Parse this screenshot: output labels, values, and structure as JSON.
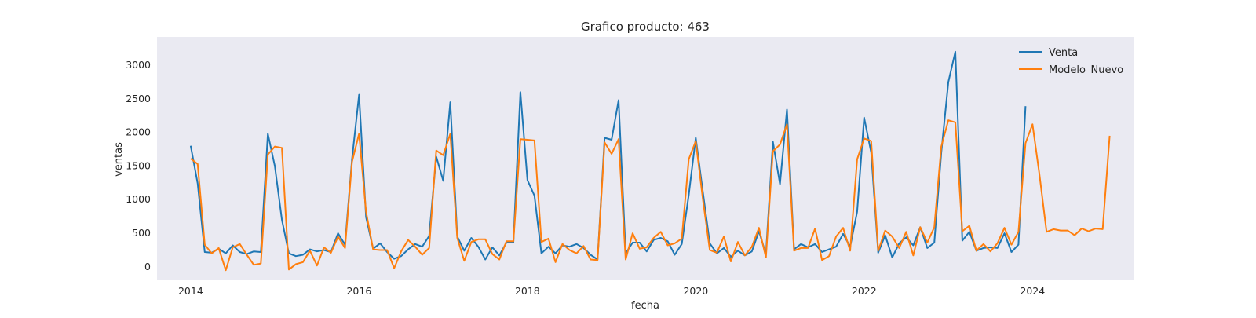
{
  "chart_data": {
    "type": "line",
    "title": "Grafico producto: 463",
    "xlabel": "fecha",
    "ylabel": "ventas",
    "xlim": [
      2013.6,
      2025.2
    ],
    "ylim": [
      -200,
      3420
    ],
    "xticks": [
      2014,
      2016,
      2018,
      2020,
      2022,
      2024
    ],
    "yticks": [
      0,
      500,
      1000,
      1500,
      2000,
      2500,
      3000
    ],
    "grid": false,
    "background": "#eaeaf2",
    "legend_position": "top-right",
    "series": [
      {
        "name": "Venta",
        "color": "#1f77b4",
        "x_start": 2014.0,
        "x_step": 0.08333333,
        "values": [
          1800,
          1240,
          220,
          210,
          270,
          200,
          320,
          220,
          190,
          230,
          220,
          1980,
          1500,
          700,
          200,
          160,
          180,
          260,
          230,
          250,
          220,
          500,
          330,
          1600,
          2560,
          740,
          270,
          350,
          220,
          120,
          160,
          260,
          340,
          300,
          460,
          1640,
          1280,
          2450,
          450,
          240,
          430,
          300,
          110,
          290,
          170,
          360,
          360,
          2600,
          1290,
          1060,
          200,
          300,
          200,
          320,
          300,
          340,
          280,
          180,
          110,
          1920,
          1890,
          2480,
          200,
          360,
          360,
          230,
          400,
          430,
          380,
          180,
          340,
          1070,
          1920,
          1120,
          350,
          200,
          280,
          150,
          240,
          170,
          230,
          530,
          190,
          1860,
          1230,
          2340,
          260,
          340,
          290,
          340,
          220,
          260,
          300,
          490,
          300,
          820,
          2220,
          1700,
          210,
          470,
          140,
          350,
          440,
          320,
          590,
          280,
          360,
          1700,
          2750,
          3200,
          390,
          520,
          240,
          280,
          290,
          280,
          500,
          220,
          330,
          2390
        ]
      },
      {
        "name": "Modelo_Nuevo",
        "color": "#ff7f0e",
        "x_start": 2014.0,
        "x_step": 0.08333333,
        "values": [
          1610,
          1530,
          330,
          200,
          280,
          -50,
          290,
          340,
          180,
          30,
          50,
          1670,
          1790,
          1770,
          -40,
          40,
          70,
          240,
          20,
          290,
          210,
          450,
          280,
          1560,
          1980,
          820,
          260,
          250,
          250,
          -20,
          230,
          400,
          300,
          180,
          280,
          1730,
          1660,
          1980,
          430,
          90,
          370,
          410,
          410,
          190,
          110,
          380,
          380,
          1900,
          1890,
          1880,
          370,
          420,
          70,
          340,
          250,
          200,
          310,
          110,
          100,
          1850,
          1680,
          1900,
          110,
          500,
          270,
          290,
          430,
          520,
          320,
          350,
          420,
          1600,
          1870,
          1010,
          250,
          210,
          450,
          80,
          370,
          170,
          300,
          580,
          140,
          1720,
          1820,
          2120,
          240,
          280,
          280,
          570,
          100,
          160,
          450,
          580,
          240,
          1600,
          1910,
          1870,
          240,
          540,
          450,
          280,
          520,
          170,
          590,
          360,
          590,
          1790,
          2180,
          2150,
          530,
          610,
          240,
          340,
          230,
          350,
          580,
          330,
          520,
          1840,
          2120,
          1370,
          520,
          560,
          540,
          540,
          470,
          570,
          530,
          570,
          560,
          1950
        ]
      }
    ]
  }
}
